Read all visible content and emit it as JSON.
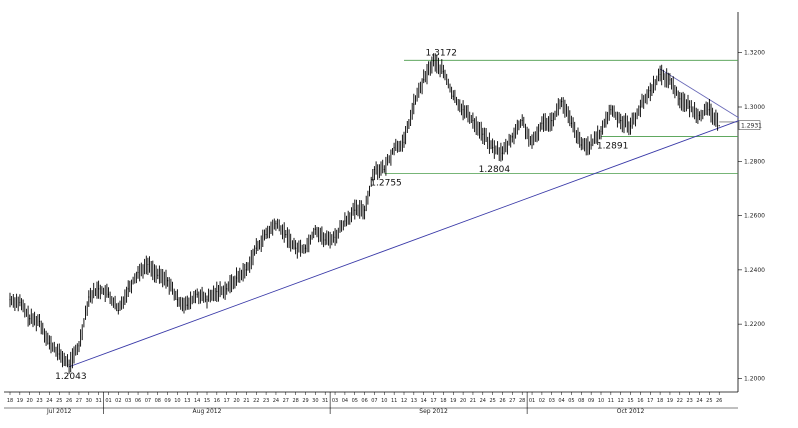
{
  "chart_data": {
    "type": "line",
    "style": "price-bars",
    "grid": false,
    "ylim": [
      1.195,
      1.335
    ],
    "yticks": [
      1.2,
      1.22,
      1.24,
      1.26,
      1.28,
      1.3,
      1.32
    ],
    "ytick_labels": [
      "1.2000",
      "1.2200",
      "1.2400",
      "1.2600",
      "1.2800",
      "1.3000",
      "1.3200"
    ],
    "last_price_label": "1.2931",
    "last_price": 1.2931,
    "day_labels": [
      "18",
      "19",
      "20",
      "23",
      "24",
      "25",
      "26",
      "27",
      "30",
      "31",
      "01",
      "02",
      "03",
      "06",
      "07",
      "08",
      "09",
      "10",
      "13",
      "14",
      "15",
      "16",
      "17",
      "20",
      "21",
      "22",
      "23",
      "24",
      "27",
      "28",
      "29",
      "30",
      "31",
      "03",
      "04",
      "05",
      "06",
      "07",
      "10",
      "11",
      "12",
      "13",
      "14",
      "17",
      "18",
      "19",
      "20",
      "21",
      "24",
      "25",
      "26",
      "27",
      "28",
      "01",
      "02",
      "03",
      "04",
      "05",
      "08",
      "09",
      "10",
      "11",
      "12",
      "15",
      "16",
      "17",
      "18",
      "19",
      "22",
      "23",
      "24",
      "25",
      "26"
    ],
    "months": [
      {
        "label": "Jul 2012",
        "day_index": 5
      },
      {
        "label": "Aug 2012",
        "day_index": 20
      },
      {
        "label": "Sep 2012",
        "day_index": 43
      },
      {
        "label": "Oct 2012",
        "day_index": 63
      }
    ],
    "month_separators": [
      10,
      33,
      53
    ],
    "series": [
      {
        "values": [
          1.229,
          1.228,
          1.222,
          1.221,
          1.213,
          1.209,
          1.205,
          1.212,
          1.23,
          1.233,
          1.231,
          1.225,
          1.233,
          1.239,
          1.242,
          1.238,
          1.236,
          1.229,
          1.227,
          1.231,
          1.229,
          1.232,
          1.233,
          1.237,
          1.24,
          1.248,
          1.253,
          1.257,
          1.253,
          1.248,
          1.248,
          1.255,
          1.251,
          1.252,
          1.258,
          1.262,
          1.262,
          1.277,
          1.277,
          1.285,
          1.287,
          1.301,
          1.31,
          1.317,
          1.313,
          1.304,
          1.299,
          1.295,
          1.29,
          1.285,
          1.283,
          1.289,
          1.295,
          1.286,
          1.294,
          1.295,
          1.302,
          1.294,
          1.286,
          1.286,
          1.291,
          1.299,
          1.295,
          1.293,
          1.3,
          1.306,
          1.312,
          1.31,
          1.303,
          1.3,
          1.297,
          1.299,
          1.2931
        ]
      }
    ],
    "annotations": [
      {
        "label": "1.2043",
        "value": 1.2043,
        "day_index": 6
      },
      {
        "label": "1.2755",
        "value": 1.2755,
        "day_index": 38
      },
      {
        "label": "1.3172",
        "value": 1.3172,
        "day_index": 43
      },
      {
        "label": "1.2804",
        "value": 1.2804,
        "day_index": 49
      },
      {
        "label": "1.2891",
        "value": 1.2891,
        "day_index": 61
      }
    ],
    "horizontal_levels": [
      {
        "value": 1.3172,
        "from_day": 40,
        "color": "#4a9c4a"
      },
      {
        "value": 1.2755,
        "from_day": 38,
        "color": "#4a9c4a"
      },
      {
        "value": 1.2891,
        "from_day": 60,
        "color": "#4a9c4a"
      },
      {
        "value": 1.2945,
        "from_day": 72,
        "color": "#7a7a7a"
      }
    ],
    "trendlines": [
      {
        "from": [
          6,
          1.2043
        ],
        "to": [
          74,
          1.295
        ],
        "color": "#3a3aa8"
      },
      {
        "from": [
          66,
          1.314
        ],
        "to": [
          74,
          1.296
        ],
        "color": "#6a6ab8"
      }
    ]
  }
}
